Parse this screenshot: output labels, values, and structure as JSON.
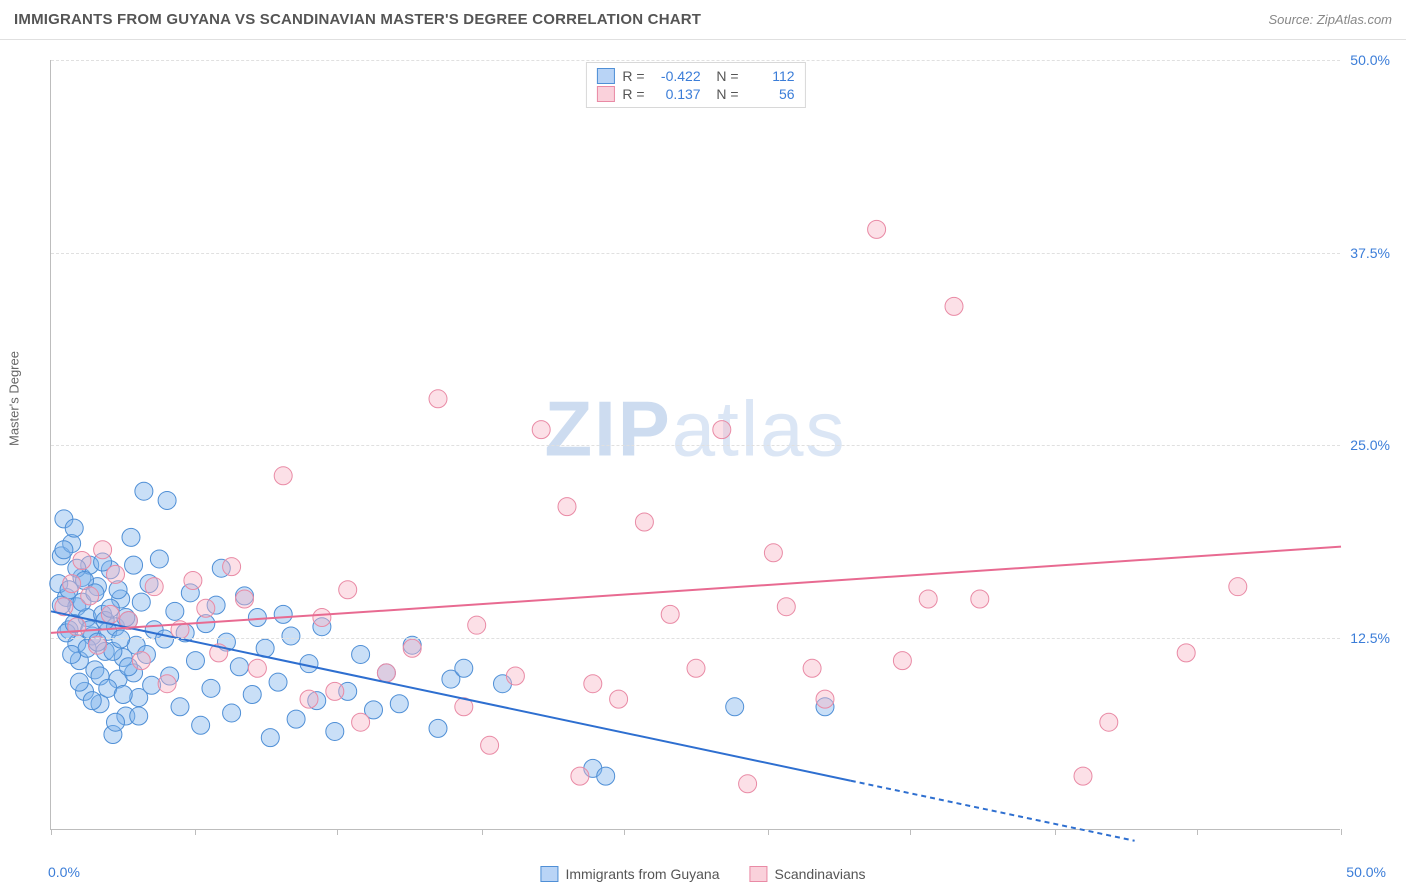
{
  "title": "IMMIGRANTS FROM GUYANA VS SCANDINAVIAN MASTER'S DEGREE CORRELATION CHART",
  "source": "Source: ZipAtlas.com",
  "watermark": {
    "bold": "ZIP",
    "rest": "atlas"
  },
  "y_axis_label": "Master's Degree",
  "chart": {
    "type": "scatter",
    "xlim": [
      0,
      50
    ],
    "ylim": [
      0,
      50
    ],
    "x_ticks": [
      0,
      5.6,
      11.1,
      16.7,
      22.2,
      27.8,
      33.3,
      38.9,
      44.4,
      50
    ],
    "y_ticks": [
      12.5,
      25.0,
      37.5,
      50.0
    ],
    "y_tick_labels": [
      "12.5%",
      "25.0%",
      "37.5%",
      "50.0%"
    ],
    "x_origin_label": "0.0%",
    "x_max_label": "50.0%",
    "grid_color": "#e0e0e0",
    "background": "#ffffff",
    "point_radius": 9,
    "point_opacity": 0.42,
    "series": [
      {
        "name": "Immigrants from Guyana",
        "color_fill": "#7fb3ec",
        "color_stroke": "#4f8fd6",
        "R": "-0.422",
        "N": "112",
        "trend": {
          "x1": 0,
          "y1": 14.2,
          "x2": 31,
          "y2": 3.2,
          "x2_dash": 42,
          "y2_dash": -0.7,
          "color": "#2e6fd0"
        },
        "points": [
          [
            0.4,
            17.8
          ],
          [
            0.5,
            20.2
          ],
          [
            0.6,
            15.1
          ],
          [
            0.7,
            13.0
          ],
          [
            0.8,
            18.6
          ],
          [
            0.9,
            19.6
          ],
          [
            1.0,
            12.1
          ],
          [
            1.0,
            14.5
          ],
          [
            1.1,
            11.0
          ],
          [
            1.2,
            16.4
          ],
          [
            1.3,
            9.0
          ],
          [
            1.4,
            13.8
          ],
          [
            1.5,
            17.2
          ],
          [
            1.6,
            12.6
          ],
          [
            1.7,
            10.4
          ],
          [
            1.8,
            15.8
          ],
          [
            1.9,
            8.2
          ],
          [
            2.0,
            14.0
          ],
          [
            2.1,
            11.6
          ],
          [
            2.2,
            12.9
          ],
          [
            2.3,
            16.9
          ],
          [
            2.4,
            6.2
          ],
          [
            2.5,
            13.2
          ],
          [
            2.6,
            9.8
          ],
          [
            2.7,
            15.0
          ],
          [
            2.8,
            11.2
          ],
          [
            2.9,
            7.4
          ],
          [
            3.0,
            13.6
          ],
          [
            3.1,
            19.0
          ],
          [
            3.2,
            10.2
          ],
          [
            3.3,
            12.0
          ],
          [
            3.4,
            8.6
          ],
          [
            3.5,
            14.8
          ],
          [
            3.6,
            22.0
          ],
          [
            3.7,
            11.4
          ],
          [
            3.8,
            16.0
          ],
          [
            3.9,
            9.4
          ],
          [
            4.0,
            13.0
          ],
          [
            4.2,
            17.6
          ],
          [
            4.4,
            12.4
          ],
          [
            4.5,
            21.4
          ],
          [
            4.6,
            10.0
          ],
          [
            4.8,
            14.2
          ],
          [
            5.0,
            8.0
          ],
          [
            5.2,
            12.8
          ],
          [
            5.4,
            15.4
          ],
          [
            5.6,
            11.0
          ],
          [
            5.8,
            6.8
          ],
          [
            6.0,
            13.4
          ],
          [
            6.2,
            9.2
          ],
          [
            6.4,
            14.6
          ],
          [
            6.6,
            17.0
          ],
          [
            6.8,
            12.2
          ],
          [
            7.0,
            7.6
          ],
          [
            7.3,
            10.6
          ],
          [
            7.5,
            15.2
          ],
          [
            7.8,
            8.8
          ],
          [
            8.0,
            13.8
          ],
          [
            8.3,
            11.8
          ],
          [
            8.5,
            6.0
          ],
          [
            8.8,
            9.6
          ],
          [
            9.0,
            14.0
          ],
          [
            9.3,
            12.6
          ],
          [
            9.5,
            7.2
          ],
          [
            10.0,
            10.8
          ],
          [
            10.3,
            8.4
          ],
          [
            10.5,
            13.2
          ],
          [
            11.0,
            6.4
          ],
          [
            11.5,
            9.0
          ],
          [
            12.0,
            11.4
          ],
          [
            12.5,
            7.8
          ],
          [
            13.0,
            10.2
          ],
          [
            13.5,
            8.2
          ],
          [
            14.0,
            12.0
          ],
          [
            15.0,
            6.6
          ],
          [
            15.5,
            9.8
          ],
          [
            16.0,
            10.5
          ],
          [
            17.5,
            9.5
          ],
          [
            21.0,
            4.0
          ],
          [
            21.5,
            3.5
          ],
          [
            26.5,
            8.0
          ],
          [
            30.0,
            8.0
          ],
          [
            0.3,
            16.0
          ],
          [
            0.4,
            14.6
          ],
          [
            0.5,
            18.2
          ],
          [
            0.6,
            12.8
          ],
          [
            0.7,
            15.6
          ],
          [
            0.8,
            11.4
          ],
          [
            0.9,
            13.4
          ],
          [
            1.0,
            17.0
          ],
          [
            1.1,
            9.6
          ],
          [
            1.2,
            14.8
          ],
          [
            1.3,
            16.2
          ],
          [
            1.4,
            11.8
          ],
          [
            1.5,
            13.0
          ],
          [
            1.6,
            8.4
          ],
          [
            1.7,
            15.4
          ],
          [
            1.8,
            12.2
          ],
          [
            1.9,
            10.0
          ],
          [
            2.0,
            17.4
          ],
          [
            2.1,
            13.6
          ],
          [
            2.2,
            9.2
          ],
          [
            2.3,
            14.4
          ],
          [
            2.4,
            11.6
          ],
          [
            2.5,
            7.0
          ],
          [
            2.6,
            15.6
          ],
          [
            2.7,
            12.4
          ],
          [
            2.8,
            8.8
          ],
          [
            2.9,
            13.8
          ],
          [
            3.0,
            10.6
          ],
          [
            3.2,
            17.2
          ],
          [
            3.4,
            7.4
          ]
        ]
      },
      {
        "name": "Scandinavians",
        "color_fill": "#f7b4c6",
        "color_stroke": "#e98aa5",
        "R": "0.137",
        "N": "56",
        "trend": {
          "x1": 0,
          "y1": 12.8,
          "x2": 50,
          "y2": 18.4,
          "color": "#e86a91"
        },
        "points": [
          [
            0.5,
            14.5
          ],
          [
            0.8,
            16.0
          ],
          [
            1.0,
            13.2
          ],
          [
            1.2,
            17.5
          ],
          [
            1.5,
            15.2
          ],
          [
            1.8,
            12.0
          ],
          [
            2.0,
            18.2
          ],
          [
            2.3,
            14.0
          ],
          [
            2.5,
            16.6
          ],
          [
            3.0,
            13.6
          ],
          [
            3.5,
            11.0
          ],
          [
            4.0,
            15.8
          ],
          [
            4.5,
            9.5
          ],
          [
            5.0,
            13.0
          ],
          [
            5.5,
            16.2
          ],
          [
            6.0,
            14.4
          ],
          [
            6.5,
            11.5
          ],
          [
            7.0,
            17.1
          ],
          [
            7.5,
            15.0
          ],
          [
            8.0,
            10.5
          ],
          [
            9.0,
            23.0
          ],
          [
            10.0,
            8.5
          ],
          [
            10.5,
            13.8
          ],
          [
            11.0,
            9.0
          ],
          [
            11.5,
            15.6
          ],
          [
            12.0,
            7.0
          ],
          [
            13.0,
            10.2
          ],
          [
            14.0,
            11.8
          ],
          [
            15.0,
            28.0
          ],
          [
            16.0,
            8.0
          ],
          [
            16.5,
            13.3
          ],
          [
            17.0,
            5.5
          ],
          [
            18.0,
            10.0
          ],
          [
            19.0,
            26.0
          ],
          [
            20.0,
            21.0
          ],
          [
            20.5,
            3.5
          ],
          [
            21.0,
            9.5
          ],
          [
            22.0,
            8.5
          ],
          [
            23.0,
            20.0
          ],
          [
            24.0,
            14.0
          ],
          [
            25.0,
            10.5
          ],
          [
            26.0,
            26.0
          ],
          [
            27.0,
            3.0
          ],
          [
            28.0,
            18.0
          ],
          [
            28.5,
            14.5
          ],
          [
            29.5,
            10.5
          ],
          [
            30.0,
            8.5
          ],
          [
            32.0,
            39.0
          ],
          [
            33.0,
            11.0
          ],
          [
            34.0,
            15.0
          ],
          [
            35.0,
            34.0
          ],
          [
            36.0,
            15.0
          ],
          [
            40.0,
            3.5
          ],
          [
            41.0,
            7.0
          ],
          [
            44.0,
            11.5
          ],
          [
            46.0,
            15.8
          ]
        ]
      }
    ]
  },
  "legend_labels": {
    "series1": "Immigrants from Guyana",
    "series2": "Scandinavians"
  }
}
